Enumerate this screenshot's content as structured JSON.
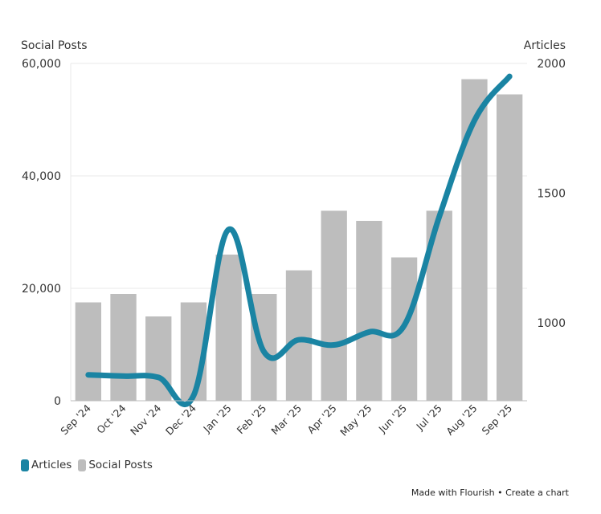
{
  "colors": {
    "line": "#1a84a3",
    "bar": "#bdbdbd",
    "grid": "#e8e8e8",
    "axis": "#bdbdbd"
  },
  "chart_data": {
    "type": "bar+line",
    "categories": [
      "Sep '24",
      "Oct '24",
      "Nov '24",
      "Dec '24",
      "Jan '25",
      "Feb '25",
      "Mar '25",
      "Apr '25",
      "May '25",
      "Jun '25",
      "Jul '25",
      "Aug '25",
      "Sep '25"
    ],
    "left_axis": {
      "title": "Social Posts",
      "ylim": [
        0,
        60000
      ],
      "ticks": [
        0,
        20000,
        40000,
        60000
      ],
      "tick_labels": [
        "0",
        "20,000",
        "40,000",
        "60,000"
      ]
    },
    "right_axis": {
      "title": "Articles",
      "ylim": [
        700,
        2000
      ],
      "ticks": [
        1000,
        1500,
        2000
      ],
      "tick_labels": [
        "1000",
        "1500",
        "2000"
      ]
    },
    "series": [
      {
        "name": "Social Posts",
        "type": "bar",
        "axis": "left",
        "color": "#bdbdbd",
        "values": [
          17500,
          19000,
          15000,
          17500,
          26000,
          19000,
          23200,
          33800,
          32000,
          25500,
          33800,
          57200,
          54500
        ]
      },
      {
        "name": "Articles",
        "type": "line",
        "axis": "right",
        "color": "#1a84a3",
        "values": [
          800,
          795,
          790,
          720,
          1360,
          890,
          935,
          915,
          965,
          990,
          1410,
          1780,
          1950
        ]
      }
    ],
    "grid": true,
    "legend": {
      "placement": "bottom-left",
      "items": [
        {
          "name": "Articles",
          "color": "#1a84a3"
        },
        {
          "name": "Social Posts",
          "color": "#bdbdbd"
        }
      ]
    }
  },
  "footer": {
    "made_with": "Made with Flourish",
    "separator": "•",
    "create": "Create a chart"
  }
}
